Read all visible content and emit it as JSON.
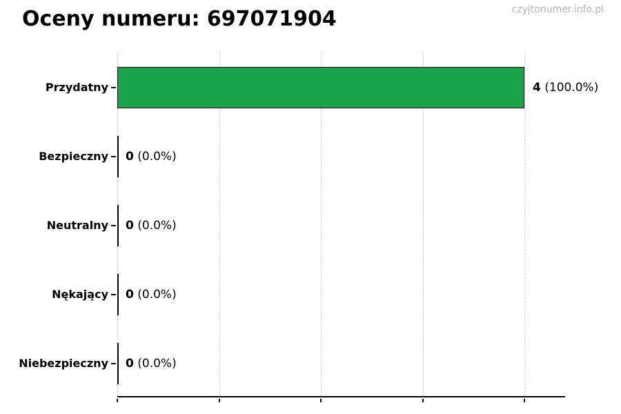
{
  "chart_data": {
    "type": "bar",
    "orientation": "horizontal",
    "title": "Oceny numeru: 697071904",
    "watermark": "czyjtonumer.info.pl",
    "categories": [
      "Przydatny",
      "Bezpieczny",
      "Neutralny",
      "Nękający",
      "Niebezpieczny"
    ],
    "values": [
      4,
      0,
      0,
      0,
      0
    ],
    "percentages": [
      "100.0%",
      "0.0%",
      "0.0%",
      "0.0%",
      "0.0%"
    ],
    "value_label_format": "{value} ({percent})",
    "xlabel": "",
    "ylabel": "",
    "xlim": [
      0,
      4
    ],
    "x_tick_step": 1,
    "grid": "vertical-dashed",
    "legend_position": "none",
    "colors": {
      "bar_fill": "#1ba34c",
      "bar_edge": "#000000",
      "gridline": "#cccccc",
      "axis": "#000000",
      "text": "#000000",
      "watermark": "#b3b3b3",
      "background": "#ffffff"
    }
  }
}
